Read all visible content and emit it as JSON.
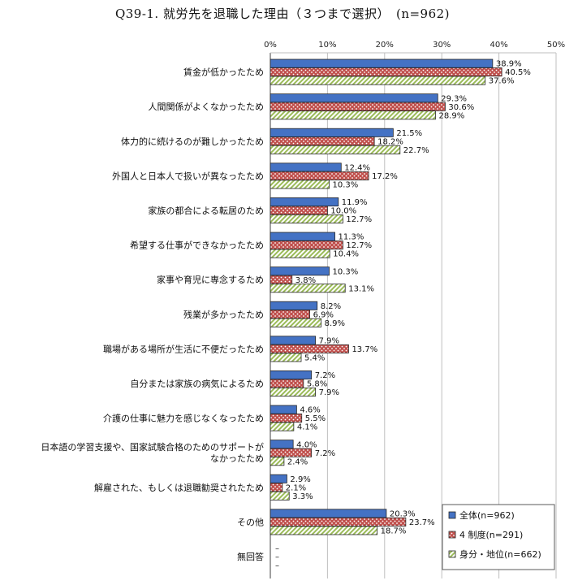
{
  "chart_data": {
    "type": "bar",
    "orientation": "horizontal",
    "title": "Q39-1.  就労先を退職した理由（３つまで選択）　(n=962)",
    "xlim": [
      0,
      50
    ],
    "ticks": [
      "0%",
      "10%",
      "20%",
      "30%",
      "40%",
      "50%"
    ],
    "grid": true,
    "legend_position": "bottom-right",
    "categories": [
      [
        "賃金が低かったため"
      ],
      [
        "人間関係がよくなかったため"
      ],
      [
        "体力的に続けるのが難しかったため"
      ],
      [
        "外国人と日本人で扱いが異なったため"
      ],
      [
        "家族の都合による転居のため"
      ],
      [
        "希望する仕事ができなかったため"
      ],
      [
        "家事や育児に専念するため"
      ],
      [
        "残業が多かったため"
      ],
      [
        "職場がある場所が生活に不便だったため"
      ],
      [
        "自分または家族の病気によるため"
      ],
      [
        "介護の仕事に魅力を感じなくなったため"
      ],
      [
        "日本語の学習支援や、国家試験合格のためのサポートが",
        "なかったため"
      ],
      [
        "解雇された、もしくは退職勧奨されたため"
      ],
      [
        "その他"
      ],
      [
        "無回答"
      ]
    ],
    "series": [
      {
        "name": "全体(n=962)",
        "color": "#4472c4",
        "values": [
          38.9,
          29.3,
          21.5,
          12.4,
          11.9,
          11.3,
          10.3,
          8.2,
          7.9,
          7.2,
          4.6,
          4.0,
          2.9,
          20.3,
          null
        ],
        "labels": [
          "38.9%",
          "29.3%",
          "21.5%",
          "12.4%",
          "11.9%",
          "11.3%",
          "10.3%",
          "8.2%",
          "7.9%",
          "7.2%",
          "4.6%",
          "4.0%",
          "2.9%",
          "20.3%",
          "–"
        ]
      },
      {
        "name": "4 制度(n=291)",
        "color": "#c0504d",
        "values": [
          40.5,
          30.6,
          18.2,
          17.2,
          10.0,
          12.7,
          3.8,
          6.9,
          13.7,
          5.8,
          5.5,
          7.2,
          2.1,
          23.7,
          null
        ],
        "labels": [
          "40.5%",
          "30.6%",
          "18.2%",
          "17.2%",
          "10.0%",
          "12.7%",
          "3.8%",
          "6.9%",
          "13.7%",
          "5.8%",
          "5.5%",
          "7.2%",
          "2.1%",
          "23.7%",
          "–"
        ]
      },
      {
        "name": "身分・地位(n=662)",
        "color": "#9bbb59",
        "values": [
          37.6,
          28.9,
          22.7,
          10.3,
          12.7,
          10.4,
          13.1,
          8.9,
          5.4,
          7.9,
          4.1,
          2.4,
          3.3,
          18.7,
          null
        ],
        "labels": [
          "37.6%",
          "28.9%",
          "22.7%",
          "10.3%",
          "12.7%",
          "10.4%",
          "13.1%",
          "8.9%",
          "5.4%",
          "7.9%",
          "4.1%",
          "2.4%",
          "3.3%",
          "18.7%",
          "–"
        ]
      }
    ]
  }
}
